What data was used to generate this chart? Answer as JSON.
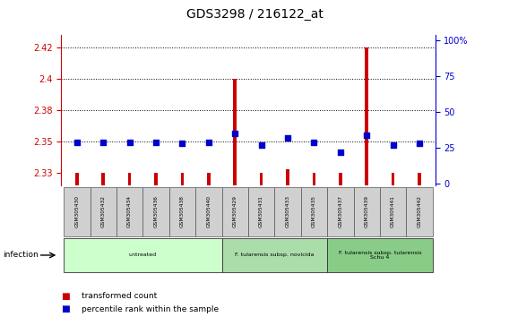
{
  "title": "GDS3298 / 216122_at",
  "samples": [
    "GSM305430",
    "GSM305432",
    "GSM305434",
    "GSM305436",
    "GSM305438",
    "GSM305440",
    "GSM305429",
    "GSM305431",
    "GSM305433",
    "GSM305435",
    "GSM305437",
    "GSM305439",
    "GSM305441",
    "GSM305442"
  ],
  "transformed_count": [
    2.325,
    2.325,
    2.325,
    2.325,
    2.325,
    2.325,
    2.4,
    2.325,
    2.328,
    2.325,
    2.325,
    2.425,
    2.325,
    2.325
  ],
  "percentile_rank": [
    29,
    29,
    29,
    29,
    28,
    29,
    35,
    27,
    32,
    29,
    22,
    34,
    27,
    28
  ],
  "ylim_left": [
    2.315,
    2.435
  ],
  "ylim_right": [
    -1.25,
    103.75
  ],
  "yticks_left": [
    2.325,
    2.35,
    2.375,
    2.4,
    2.425
  ],
  "yticks_right": [
    0,
    25,
    50,
    75,
    100
  ],
  "groups": [
    {
      "label": "untreated",
      "start": 0,
      "end": 6,
      "color": "#ccffcc"
    },
    {
      "label": "F. tularensis subsp. novicida",
      "start": 6,
      "end": 10,
      "color": "#aaddaa"
    },
    {
      "label": "F. tularensis subsp. tularensis\nSchu 4",
      "start": 10,
      "end": 14,
      "color": "#88cc88"
    }
  ],
  "infection_label": "infection",
  "legend_red_label": "transformed count",
  "legend_blue_label": "percentile rank within the sample",
  "bar_color": "#cc0000",
  "dot_color": "#0000cc",
  "axis_color_left": "#cc0000",
  "axis_color_right": "#0000cc",
  "grid_color": "#000000",
  "bar_width": 0.12,
  "dot_size": 16
}
